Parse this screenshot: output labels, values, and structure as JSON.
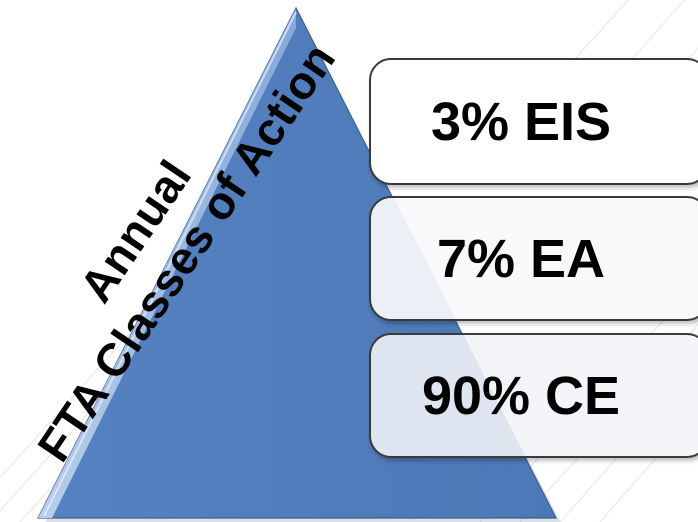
{
  "diagram": {
    "side_label": {
      "line1": "Annual",
      "line2": "FTA Classes of Action"
    },
    "tiers": [
      {
        "label": "3% EIS",
        "percent": 3,
        "category": "EIS"
      },
      {
        "label": "7% EA",
        "percent": 7,
        "category": "EA"
      },
      {
        "label": "90% CE",
        "percent": 90,
        "category": "CE"
      }
    ],
    "colors": {
      "pyramid_fill": "#5b86c4",
      "pyramid_edge": "#9db9e0",
      "tier_border": "#3a3a3a",
      "background": "#ffffff",
      "background_lines": "#dfe4ea"
    }
  }
}
